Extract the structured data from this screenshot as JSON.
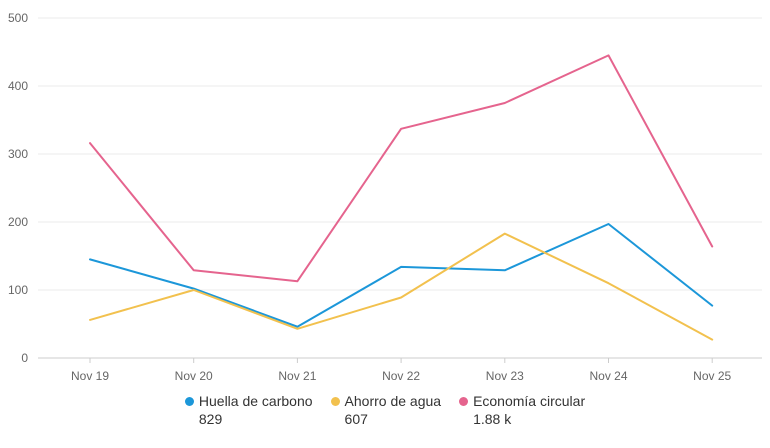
{
  "chart_data": {
    "type": "line",
    "categories": [
      "Nov 19",
      "Nov 20",
      "Nov 21",
      "Nov 22",
      "Nov 23",
      "Nov 24",
      "Nov 25"
    ],
    "ylim": [
      0,
      500
    ],
    "yticks": [
      0,
      100,
      200,
      300,
      400,
      500
    ],
    "grid": true,
    "legend_position": "bottom",
    "series": [
      {
        "name": "Huella de carbono",
        "total": "829",
        "color": "#1c97d9",
        "values": [
          145,
          102,
          46,
          134,
          129,
          197,
          77
        ]
      },
      {
        "name": "Ahorro de agua",
        "total": "607",
        "color": "#f2c14e",
        "values": [
          56,
          100,
          43,
          89,
          183,
          110,
          27
        ]
      },
      {
        "name": "Economía circular",
        "total": "1.88 k",
        "color": "#e5648e",
        "values": [
          316,
          129,
          113,
          337,
          375,
          445,
          164
        ]
      }
    ]
  }
}
